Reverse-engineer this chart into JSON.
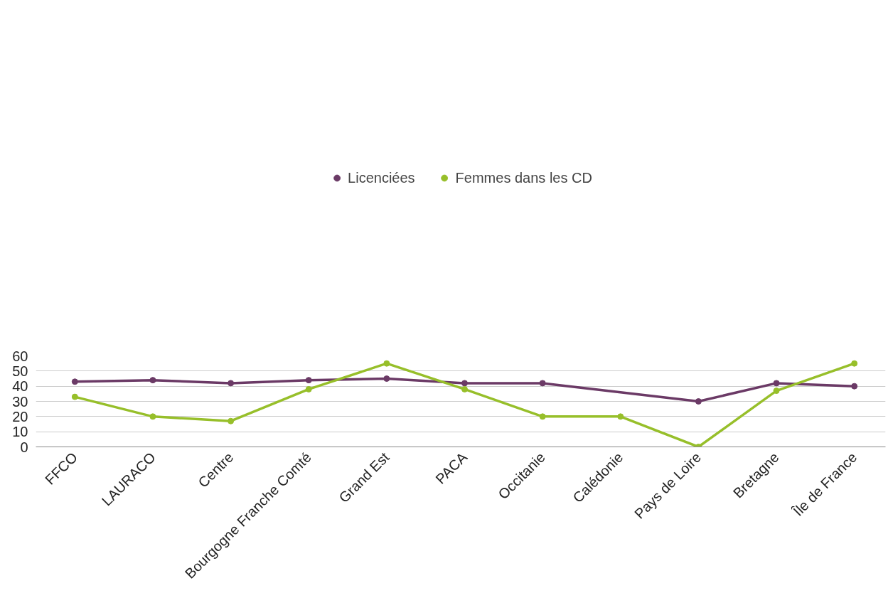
{
  "chart_data": {
    "type": "line",
    "categories": [
      "FFCO",
      "LAURACO",
      "Centre",
      "Bourgogne Franche Comté",
      "Grand Est",
      "PACA",
      "Occitanie",
      "Calédonie",
      "Pays de Loire",
      "Bretagne",
      "Île de France"
    ],
    "series": [
      {
        "name": "Licenciées",
        "color": "#6b3a66",
        "values": [
          43,
          44,
          42,
          44,
          45,
          42,
          42,
          null,
          30,
          42,
          40
        ]
      },
      {
        "name": "Femmes dans les CD",
        "color": "#97bf2a",
        "values": [
          33,
          20,
          17,
          38,
          55,
          38,
          20,
          20,
          0,
          37,
          55
        ]
      }
    ],
    "ylim": [
      0,
      60
    ],
    "yticks": [
      0,
      10,
      20,
      30,
      40,
      50,
      60
    ],
    "grid": "y",
    "legend": "top",
    "marker": "circle",
    "line_style": "solid"
  }
}
